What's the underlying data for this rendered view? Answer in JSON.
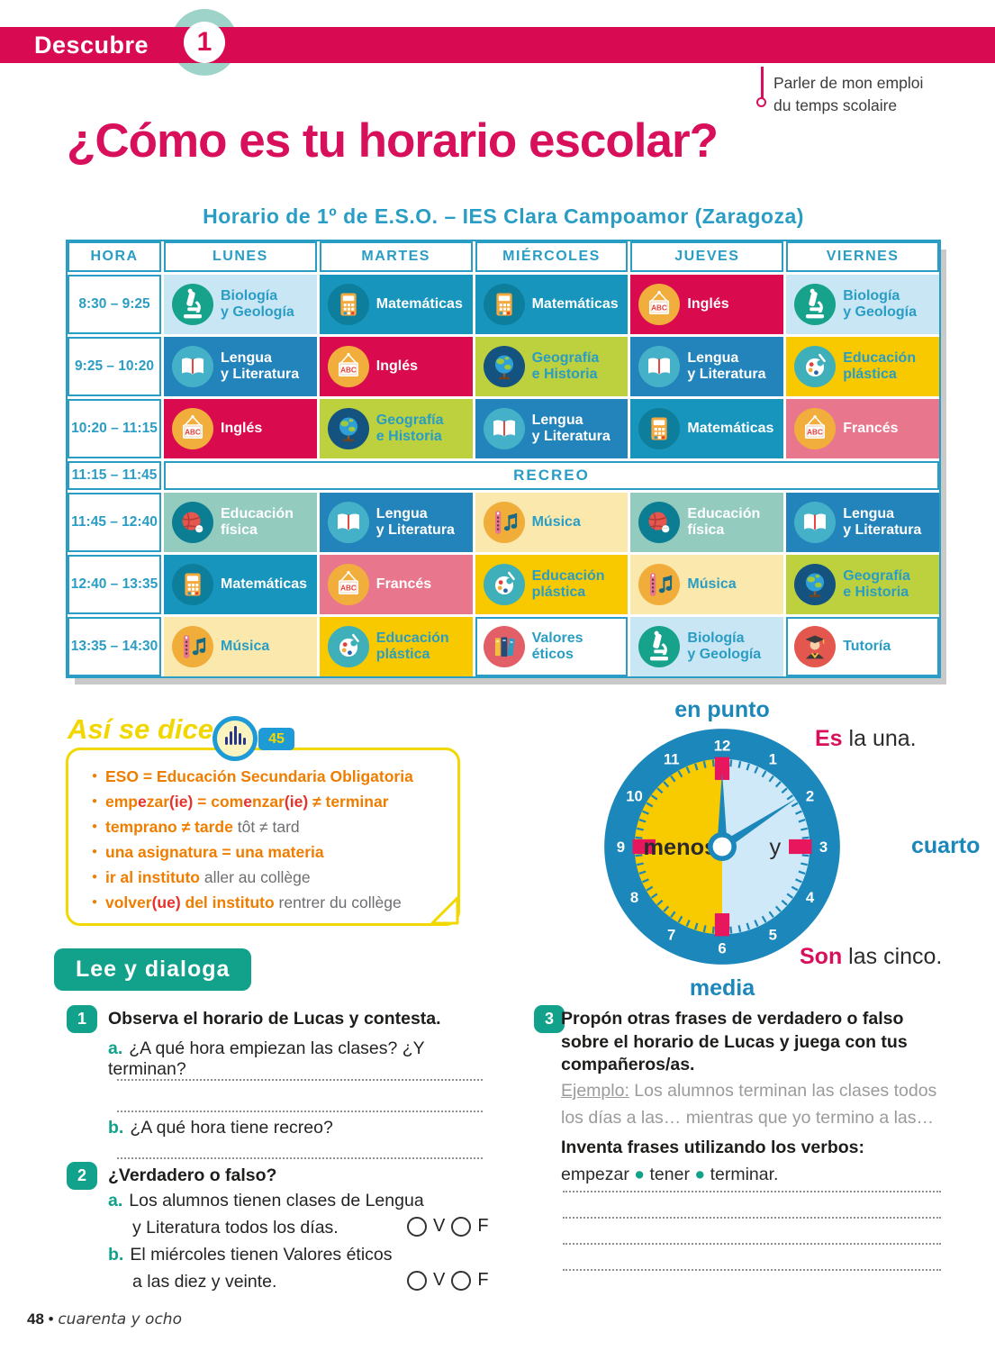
{
  "header": {
    "brand": "Descubre",
    "unit": "1",
    "objective": "Parler de mon emploi\ndu temps scolaire"
  },
  "page_title": "¿Cómo es tu horario escolar?",
  "schedule": {
    "title": "Horario de 1º de E.S.O. – IES Clara Campoamor (Zaragoza)",
    "headers": [
      "HORA",
      "LUNES",
      "MARTES",
      "MIÉRCOLES",
      "JUEVES",
      "VIERNES"
    ],
    "rows": [
      {
        "time": "8:30 – 9:25",
        "cells": [
          {
            "label": "Biología\ny Geología",
            "icon": "micro",
            "bg": "#c9e6f5",
            "fg": "#2a9dc4"
          },
          {
            "label": "Matemáticas",
            "icon": "calc",
            "bg": "#1795bd",
            "fg": "#ffffff"
          },
          {
            "label": "Matemáticas",
            "icon": "calc",
            "bg": "#1795bd",
            "fg": "#ffffff"
          },
          {
            "label": "Inglés",
            "icon": "abc",
            "bg": "#d90b4e",
            "fg": "#ffffff"
          },
          {
            "label": "Biología\ny Geología",
            "icon": "micro",
            "bg": "#c9e6f5",
            "fg": "#2a9dc4"
          }
        ]
      },
      {
        "time": "9:25 – 10:20",
        "cells": [
          {
            "label": "Lengua\ny Literatura",
            "icon": "book",
            "bg": "#2383bb",
            "fg": "#ffffff"
          },
          {
            "label": "Inglés",
            "icon": "abc",
            "bg": "#d90b4e",
            "fg": "#ffffff"
          },
          {
            "label": "Geografía\ne Historia",
            "icon": "globe",
            "bg": "#bdd03e",
            "fg": "#2a9dc4"
          },
          {
            "label": "Lengua\ny Literatura",
            "icon": "book",
            "bg": "#2383bb",
            "fg": "#ffffff"
          },
          {
            "label": "Educación\nplástica",
            "icon": "palette",
            "bg": "#f9c900",
            "fg": "#2a9dc4"
          }
        ]
      },
      {
        "time": "10:20 – 11:15",
        "cells": [
          {
            "label": "Inglés",
            "icon": "abc",
            "bg": "#d90b4e",
            "fg": "#ffffff"
          },
          {
            "label": "Geografía\ne Historia",
            "icon": "globe",
            "bg": "#bdd03e",
            "fg": "#2a9dc4"
          },
          {
            "label": "Lengua\ny Literatura",
            "icon": "book",
            "bg": "#2383bb",
            "fg": "#ffffff"
          },
          {
            "label": "Matemáticas",
            "icon": "calc",
            "bg": "#1795bd",
            "fg": "#ffffff"
          },
          {
            "label": "Francés",
            "icon": "abc",
            "bg": "#e8768d",
            "fg": "#ffffff"
          }
        ]
      },
      {
        "time": "11:15 – 11:45",
        "recreo": "RECREO"
      },
      {
        "time": "11:45 – 12:40",
        "cells": [
          {
            "label": "Educación\nfísica",
            "icon": "ball",
            "bg": "#93cbbf",
            "fg": "#ffffff"
          },
          {
            "label": "Lengua\ny Literatura",
            "icon": "book",
            "bg": "#2383bb",
            "fg": "#ffffff"
          },
          {
            "label": "Música",
            "icon": "flute",
            "bg": "#fae8ad",
            "fg": "#2a9dc4"
          },
          {
            "label": "Educación\nfísica",
            "icon": "ball",
            "bg": "#93cbbf",
            "fg": "#ffffff"
          },
          {
            "label": "Lengua\ny Literatura",
            "icon": "book",
            "bg": "#2383bb",
            "fg": "#ffffff"
          }
        ]
      },
      {
        "time": "12:40 – 13:35",
        "cells": [
          {
            "label": "Matemáticas",
            "icon": "calc",
            "bg": "#1795bd",
            "fg": "#ffffff"
          },
          {
            "label": "Francés",
            "icon": "abc",
            "bg": "#e8768d",
            "fg": "#ffffff"
          },
          {
            "label": "Educación\nplástica",
            "icon": "palette",
            "bg": "#f9c900",
            "fg": "#2a9dc4"
          },
          {
            "label": "Música",
            "icon": "flute",
            "bg": "#fae8ad",
            "fg": "#2a9dc4"
          },
          {
            "label": "Geografía\ne Historia",
            "icon": "globe",
            "bg": "#bdd03e",
            "fg": "#2a9dc4"
          }
        ]
      },
      {
        "time": "13:35 – 14:30",
        "cells": [
          {
            "label": "Música",
            "icon": "flute",
            "bg": "#fae8ad",
            "fg": "#2a9dc4"
          },
          {
            "label": "Educación\nplástica",
            "icon": "palette",
            "bg": "#f9c900",
            "fg": "#2a9dc4"
          },
          {
            "label": "Valores\néticos",
            "icon": "books",
            "bg": "#ffffff",
            "fg": "#2a9dc4"
          },
          {
            "label": "Biología\ny Geología",
            "icon": "micro",
            "bg": "#c9e6f5",
            "fg": "#2a9dc4"
          },
          {
            "label": "Tutoría",
            "icon": "grad",
            "bg": "#ffffff",
            "fg": "#2a9dc4"
          }
        ]
      }
    ]
  },
  "asi_se_dice": {
    "heading": "Así se dice",
    "audio_track": "45",
    "items": [
      [
        {
          "t": "ESO = Educación Secundaria Obligatoria",
          "c": "o"
        }
      ],
      [
        {
          "t": "emp",
          "c": "o"
        },
        {
          "t": "e",
          "c": "r"
        },
        {
          "t": "zar",
          "c": "o"
        },
        {
          "t": "(ie)",
          "c": "r"
        },
        {
          "t": " = com",
          "c": "o"
        },
        {
          "t": "e",
          "c": "r"
        },
        {
          "t": "nzar",
          "c": "o"
        },
        {
          "t": "(ie)",
          "c": "r"
        },
        {
          "t": " ≠ terminar",
          "c": "o"
        }
      ],
      [
        {
          "t": "temprano ≠ tarde",
          "c": "o"
        },
        {
          "t": " tôt ≠ tard",
          "c": "g"
        }
      ],
      [
        {
          "t": "una asignatura = una materia",
          "c": "o"
        }
      ],
      [
        {
          "t": "ir al instituto",
          "c": "o"
        },
        {
          "t": " aller au collège",
          "c": "g"
        }
      ],
      [
        {
          "t": "volver",
          "c": "o"
        },
        {
          "t": "(ue)",
          "c": "r"
        },
        {
          "t": " del instituto",
          "c": "o"
        },
        {
          "t": " rentrer du collège",
          "c": "g"
        }
      ]
    ]
  },
  "clock": {
    "numbers": [
      "1",
      "2",
      "3",
      "4",
      "5",
      "6",
      "7",
      "8",
      "9",
      "10",
      "11",
      "12"
    ],
    "top_label": "en punto",
    "bottom_label": "media",
    "right_label": "cuarto",
    "inner_left": "menos",
    "inner_right": "y",
    "phrase_one": [
      {
        "t": "Es",
        "c": "pink"
      },
      {
        "t": " la una.",
        "c": "dark"
      }
    ],
    "phrase_five": [
      {
        "t": "Son",
        "c": "pink"
      },
      {
        "t": " las cinco.",
        "c": "dark"
      }
    ]
  },
  "activities": {
    "banner": "Lee y dialoga",
    "ex1": {
      "num": "1",
      "title": "Observa el horario de Lucas y contesta.",
      "a_letter": "a.",
      "a_text": "¿A qué hora empiezan las clases? ¿Y terminan?",
      "b_letter": "b.",
      "b_text": "¿A qué hora tiene recreo?"
    },
    "ex2": {
      "num": "2",
      "title": "¿Verdadero o falso?",
      "true_label": "V",
      "false_label": "F",
      "items": [
        {
          "letter": "a.",
          "line1": "Los alumnos tienen clases de Lengua",
          "line2": "y Literatura todos los días."
        },
        {
          "letter": "b.",
          "line1": "El miércoles tienen Valores éticos",
          "line2": "a las diez y veinte."
        }
      ]
    },
    "ex3": {
      "num": "3",
      "title": "Propón otras frases de verdadero o falso sobre el horario de Lucas y juega con tus compañeros/as.",
      "example": [
        {
          "t": "Ejemplo:",
          "c": "ex"
        },
        {
          "t": " Los alumnos terminan las clases todos los días a las… mientras que yo termino a las…",
          "c": "gray"
        }
      ],
      "invent": "Inventa frases utilizando los verbos:",
      "verbs": [
        {
          "t": "empezar ",
          "c": "dark"
        },
        {
          "t": "● ",
          "c": "dot"
        },
        {
          "t": "tener ",
          "c": "dark"
        },
        {
          "t": "● ",
          "c": "dot"
        },
        {
          "t": "terminar.",
          "c": "dark"
        }
      ]
    }
  },
  "footer_segments": [
    {
      "t": "48",
      "c": "fbold"
    },
    {
      "t": " • ",
      "c": "fdot"
    },
    {
      "t": "cuarenta y ocho",
      "c": "fword"
    }
  ]
}
